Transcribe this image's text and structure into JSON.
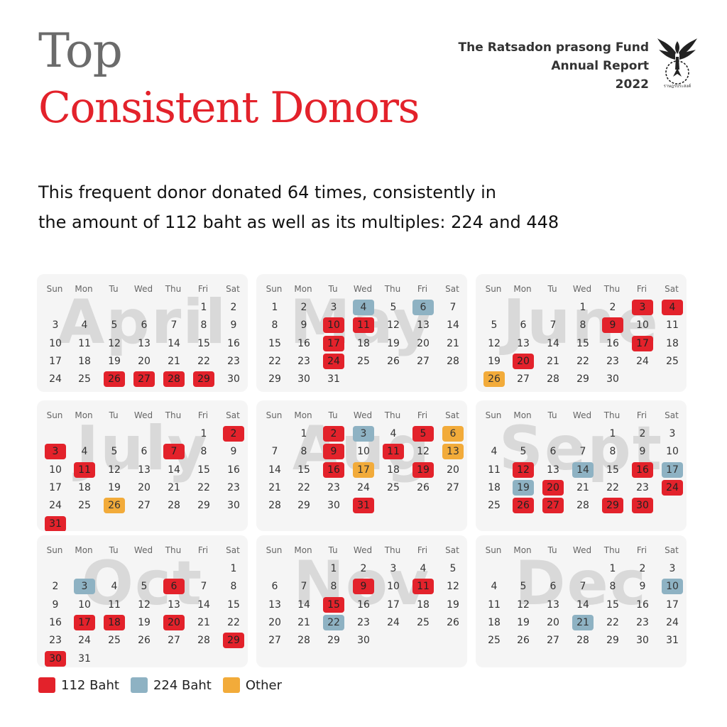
{
  "header": {
    "title_top": "Top",
    "title_main": "Consistent Donors",
    "org_lines": [
      "The Ratsadon prasong Fund",
      "Annual Report",
      "2022"
    ],
    "logo_caption": "ราษฎรประสงค์"
  },
  "subtitle_lines": [
    "This frequent donor donated 64 times, consistently in",
    "the amount of 112 baht as well as its multiples: 224 and 448"
  ],
  "weekdays": [
    "Sun",
    "Mon",
    "Tu",
    "Wed",
    "Thu",
    "Fri",
    "Sat"
  ],
  "colors": {
    "red": "#e3222b",
    "blue": "#8eb2c3",
    "orange": "#f2ab3a",
    "panel": "#f5f5f5"
  },
  "legend": [
    {
      "label": "112 Baht",
      "color": "#e3222b"
    },
    {
      "label": "224 Baht",
      "color": "#8eb2c3"
    },
    {
      "label": "Other",
      "color": "#f2ab3a"
    }
  ],
  "months": [
    {
      "name": "April",
      "start": 5,
      "days": 30,
      "red": [
        26,
        27,
        28,
        29
      ],
      "blue": [],
      "orange": []
    },
    {
      "name": "May",
      "start": 0,
      "days": 31,
      "red": [
        10,
        11,
        17,
        24
      ],
      "blue": [
        4,
        6
      ],
      "orange": []
    },
    {
      "name": "June",
      "start": 3,
      "days": 30,
      "red": [
        3,
        4,
        9,
        17,
        20
      ],
      "blue": [],
      "orange": [
        26
      ]
    },
    {
      "name": "July",
      "start": 5,
      "days": 31,
      "red": [
        2,
        3,
        7,
        11,
        31
      ],
      "blue": [],
      "orange": [
        26
      ]
    },
    {
      "name": "Aug",
      "start": 1,
      "days": 31,
      "red": [
        2,
        5,
        9,
        11,
        16,
        19,
        31
      ],
      "blue": [
        3
      ],
      "orange": [
        6,
        13,
        17
      ]
    },
    {
      "name": "Sept",
      "start": 4,
      "days": 30,
      "red": [
        12,
        16,
        20,
        24,
        26,
        27,
        29,
        30
      ],
      "blue": [
        14,
        17,
        19
      ],
      "orange": []
    },
    {
      "name": "Oct",
      "start": 6,
      "days": 31,
      "red": [
        6,
        17,
        18,
        20,
        29,
        30
      ],
      "blue": [
        3
      ],
      "orange": []
    },
    {
      "name": "Nov",
      "start": 2,
      "days": 30,
      "red": [
        9,
        11,
        15
      ],
      "blue": [
        22
      ],
      "orange": []
    },
    {
      "name": "Dec",
      "start": 4,
      "days": 31,
      "red": [],
      "blue": [
        10,
        21
      ],
      "orange": []
    }
  ]
}
